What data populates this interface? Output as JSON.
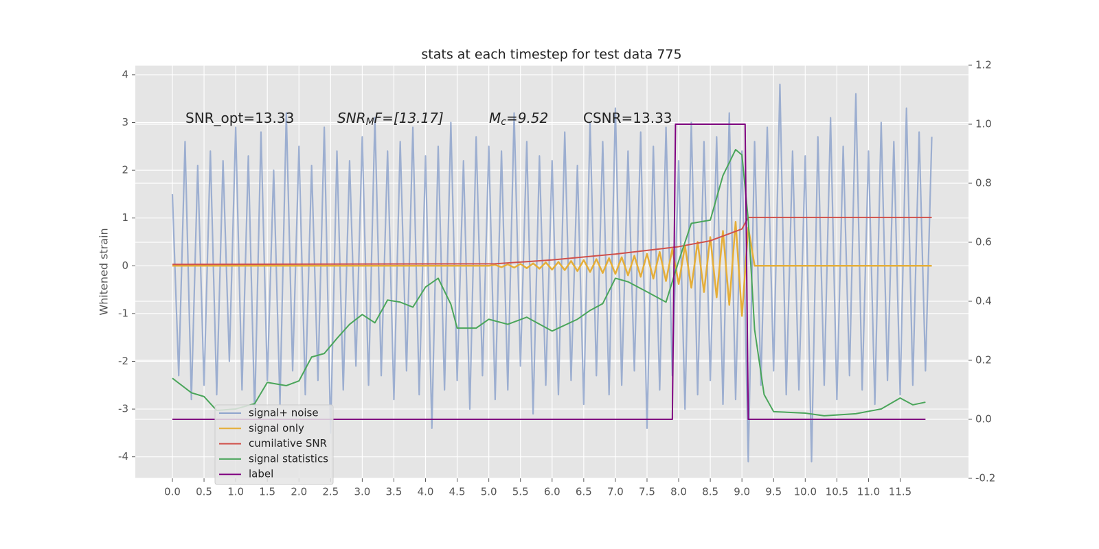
{
  "chart_data": {
    "type": "line",
    "title": "stats at each timestep for test data 775",
    "ylabel": "Whitened strain",
    "annotations": [
      {
        "text": "SNR_opt=13.33"
      },
      {
        "text": "SNR",
        "sub": "M",
        "after": "F=[13.17]",
        "italic": true
      },
      {
        "text": "M",
        "sub": "c",
        "after": "=9.52",
        "italic": true
      },
      {
        "text": "CSNR=13.33"
      }
    ],
    "xlim": [
      -0.586,
      12.58
    ],
    "ylim": [
      -4.45,
      4.2
    ],
    "y2lim": [
      -0.2,
      1.2
    ],
    "xticks": [
      {
        "value": 0,
        "label": "0.0"
      },
      0.5,
      {
        "value": 1,
        "label": "1.0"
      },
      1.5,
      {
        "value": 2,
        "label": "2.0"
      },
      2.5,
      {
        "value": 3,
        "label": "3.0"
      },
      3.5,
      {
        "value": 4,
        "label": "4.0"
      },
      4.5,
      {
        "value": 5,
        "label": "5.0"
      },
      5.5,
      {
        "value": 6,
        "label": "6.0"
      },
      6.5,
      {
        "value": 7,
        "label": "7.0"
      },
      7.5,
      {
        "value": 8,
        "label": "8.0"
      },
      8.5,
      {
        "value": 9,
        "label": "9.0"
      },
      9.5,
      {
        "value": 10,
        "label": "10.0"
      },
      10.5,
      {
        "value": 11,
        "label": "11.0"
      },
      11.5
    ],
    "yticks": [
      -4,
      -3,
      -2,
      -1,
      0,
      1,
      2,
      3,
      4
    ],
    "y2ticks": [
      -0.2,
      {
        "value": 0,
        "label": "0.0"
      },
      0.2,
      0.4,
      0.6,
      0.8,
      {
        "value": 1,
        "label": "1.0"
      },
      1.2
    ],
    "grid": true,
    "legend": "lower left",
    "x": [
      0,
      0.1,
      0.2,
      0.3,
      0.4,
      0.5,
      0.6,
      0.7,
      0.8,
      0.9,
      1,
      1.1,
      1.2,
      1.3,
      1.4,
      1.5,
      1.6,
      1.7,
      1.8,
      1.9,
      2,
      2.1,
      2.2,
      2.3,
      2.4,
      2.5,
      2.6,
      2.7,
      2.8,
      2.9,
      3,
      3.1,
      3.2,
      3.3,
      3.4,
      3.5,
      3.6,
      3.7,
      3.8,
      3.9,
      4,
      4.1,
      4.2,
      4.3,
      4.4,
      4.5,
      4.6,
      4.7,
      4.8,
      4.9,
      5,
      5.1,
      5.2,
      5.3,
      5.4,
      5.5,
      5.6,
      5.7,
      5.8,
      5.9,
      6,
      6.1,
      6.2,
      6.3,
      6.4,
      6.5,
      6.6,
      6.7,
      6.8,
      6.9,
      7,
      7.1,
      7.2,
      7.3,
      7.4,
      7.5,
      7.6,
      7.7,
      7.8,
      7.9,
      8,
      8.1,
      8.2,
      8.3,
      8.4,
      8.5,
      8.6,
      8.7,
      8.8,
      8.9,
      9,
      9.1,
      9.2,
      9.3,
      9.4,
      9.5,
      9.6,
      9.7,
      9.8,
      9.9,
      10,
      10.1,
      10.2,
      10.3,
      10.4,
      10.5,
      10.6,
      10.7,
      10.8,
      10.9,
      11,
      11.1,
      11.2,
      11.3,
      11.4,
      11.5,
      11.6,
      11.7,
      11.8,
      11.9,
      12
    ],
    "series": [
      {
        "name": "signal+ noise",
        "color": "#8fa4cc",
        "values": [
          1.5,
          -2.3,
          2.6,
          -2.8,
          2.1,
          -2.5,
          2.4,
          -2.7,
          2.2,
          -2.0,
          2.9,
          -2.6,
          2.3,
          -3.1,
          2.8,
          -2.4,
          2.0,
          -2.9,
          3.2,
          -2.2,
          2.5,
          -2.7,
          2.1,
          -2.4,
          2.9,
          -3.5,
          2.4,
          -2.6,
          2.2,
          -2.1,
          2.7,
          -2.5,
          3.1,
          -2.3,
          2.4,
          -2.8,
          2.6,
          -2.2,
          2.9,
          -2.7,
          2.3,
          -3.4,
          2.5,
          -2.6,
          3.0,
          -2.4,
          2.2,
          -3.0,
          2.7,
          -2.3,
          2.5,
          -2.8,
          2.4,
          -2.6,
          3.2,
          -2.1,
          2.6,
          -3.1,
          2.3,
          -2.5,
          2.2,
          -2.7,
          2.8,
          -2.4,
          2.1,
          -2.9,
          3.0,
          -2.3,
          2.6,
          -2.7,
          3.3,
          -2.5,
          2.4,
          -2.2,
          2.8,
          -3.4,
          2.5,
          -2.6,
          2.9,
          -2.3,
          2.2,
          -3.0,
          3.0,
          -2.7,
          2.6,
          -2.4,
          2.7,
          -2.9,
          3.2,
          -2.8,
          2.4,
          -4.1,
          2.6,
          -2.5,
          2.9,
          -2.2,
          3.8,
          -2.7,
          2.4,
          -2.6,
          2.3,
          -4.1,
          2.7,
          -2.5,
          3.1,
          -2.8,
          2.5,
          -2.3,
          3.6,
          -2.6,
          2.4,
          -2.9,
          3.0,
          -2.4,
          2.6,
          -2.7,
          3.3,
          -2.5,
          2.8,
          -2.2,
          2.7
        ]
      },
      {
        "name": "signal only",
        "color": "#e5ae38",
        "values": [
          0,
          0,
          0,
          0,
          0,
          0,
          0,
          0,
          0,
          0,
          0,
          0,
          0,
          0,
          0,
          0,
          0,
          0,
          0,
          0,
          0,
          0,
          0,
          0,
          0,
          0,
          0,
          0,
          0,
          0,
          0,
          0,
          0,
          0,
          0,
          0,
          0,
          0,
          0,
          0,
          0,
          0,
          0,
          0,
          0,
          0,
          0,
          0,
          0,
          0,
          0,
          0.02,
          -0.03,
          0.03,
          -0.04,
          0.04,
          -0.05,
          0.05,
          -0.06,
          0.07,
          -0.08,
          0.08,
          -0.09,
          0.1,
          -0.11,
          0.12,
          -0.13,
          0.14,
          -0.15,
          0.16,
          -0.17,
          0.18,
          -0.2,
          0.21,
          -0.23,
          0.25,
          -0.27,
          0.29,
          -0.32,
          0.35,
          -0.38,
          0.42,
          -0.46,
          0.5,
          -0.55,
          0.6,
          -0.66,
          0.73,
          -0.82,
          0.92,
          -1.05,
          0.8,
          0,
          0,
          0,
          0,
          0,
          0,
          0,
          0,
          0,
          0,
          0,
          0,
          0,
          0,
          0,
          0,
          0,
          0,
          0,
          0,
          0,
          0,
          0,
          0,
          0,
          0,
          0,
          0,
          0
        ]
      },
      {
        "name": "cumilative SNR",
        "color": "#d0504a",
        "axis": "y2",
        "x": [
          0,
          5.1,
          6,
          7,
          8,
          8.5,
          9,
          9.1,
          12
        ],
        "values": [
          0.525,
          0.527,
          0.54,
          0.56,
          0.585,
          0.605,
          0.645,
          0.684,
          0.684
        ]
      },
      {
        "name": "signal statistics",
        "color": "#4aa55a",
        "axis": "y2",
        "x": [
          0,
          0.3,
          0.5,
          0.7,
          1.0,
          1.3,
          1.5,
          1.8,
          2.0,
          2.2,
          2.4,
          2.6,
          2.8,
          3.0,
          3.2,
          3.4,
          3.6,
          3.8,
          4.0,
          4.2,
          4.4,
          4.5,
          4.8,
          5.0,
          5.3,
          5.6,
          6.0,
          6.4,
          6.6,
          6.8,
          7.0,
          7.2,
          7.5,
          7.8,
          8.0,
          8.2,
          8.5,
          8.7,
          8.9,
          9.0,
          9.1,
          9.2,
          9.35,
          9.5,
          10.0,
          10.3,
          10.8,
          11.2,
          11.5,
          11.7,
          11.9
        ],
        "values": [
          0.139,
          0.09,
          0.077,
          0.03,
          0.035,
          0.053,
          0.125,
          0.114,
          0.13,
          0.211,
          0.223,
          0.274,
          0.322,
          0.355,
          0.327,
          0.404,
          0.397,
          0.38,
          0.448,
          0.478,
          0.39,
          0.309,
          0.309,
          0.339,
          0.322,
          0.346,
          0.299,
          0.339,
          0.369,
          0.392,
          0.478,
          0.466,
          0.432,
          0.397,
          0.536,
          0.664,
          0.675,
          0.826,
          0.914,
          0.896,
          0.675,
          0.304,
          0.084,
          0.026,
          0.021,
          0.012,
          0.019,
          0.035,
          0.072,
          0.049,
          0.058
        ]
      },
      {
        "name": "label",
        "color": "#800080",
        "axis": "y2",
        "x": [
          0,
          7.9,
          7.95,
          9.05,
          9.1,
          11.9
        ],
        "values": [
          0,
          0,
          1,
          1,
          0,
          0
        ]
      }
    ]
  }
}
